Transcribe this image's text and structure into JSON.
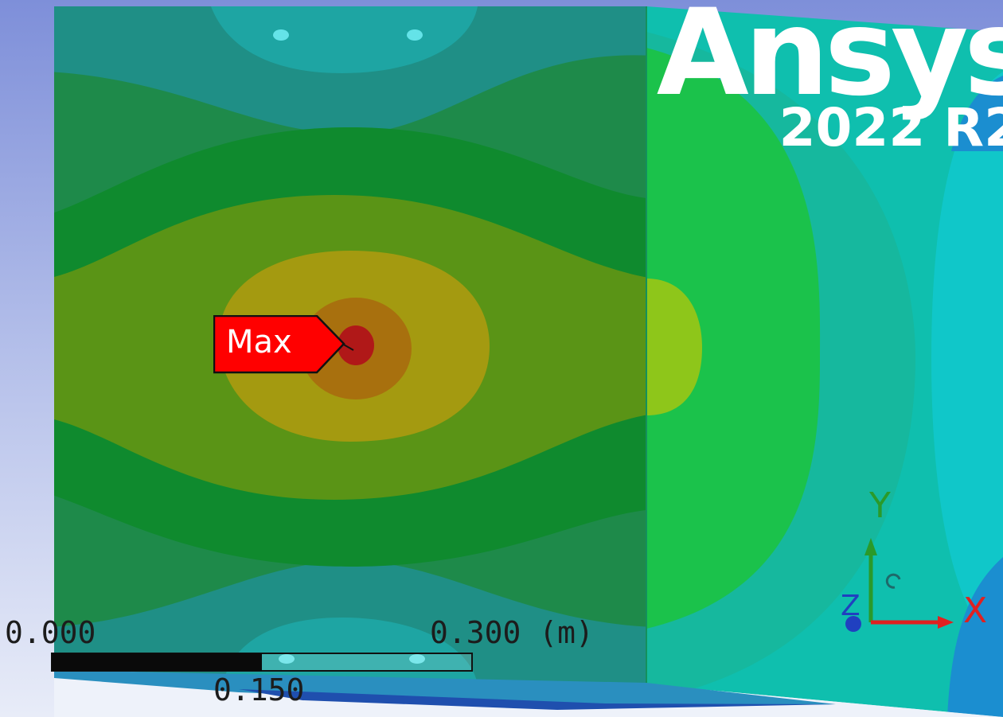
{
  "logo": {
    "name": "Ansys",
    "version": "2022 R2"
  },
  "probe": {
    "max_label": "Max"
  },
  "scale_bar": {
    "start": "0.000",
    "mid": "0.150",
    "end": "0.300 (m)"
  },
  "triad": {
    "x_label": "X",
    "y_label": "Y",
    "z_label": "Z"
  },
  "colors": {
    "background_top": "#7e8fd9",
    "background_bottom": "#e8ecf8",
    "max_label": "#ff0000",
    "axis_x": "#e02020",
    "axis_y": "#2a9a2a",
    "axis_z": "#2040c0"
  },
  "icons": {
    "triad": "coordinate-triad-icon"
  }
}
